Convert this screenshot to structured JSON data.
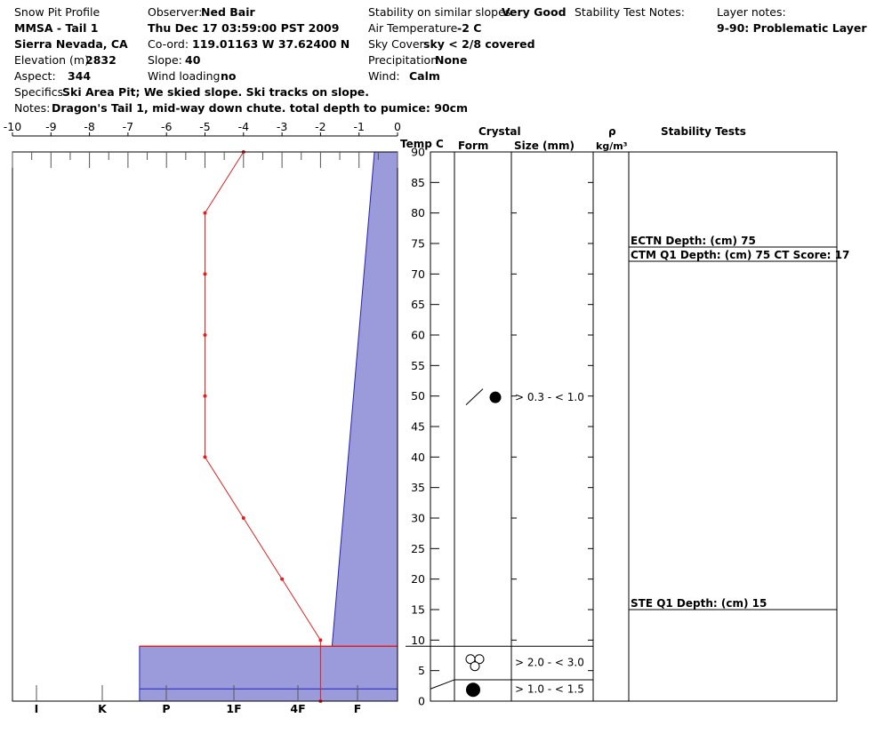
{
  "header": {
    "title": "Snow Pit Profile",
    "site": "MMSA - Tail 1",
    "region": "Sierra Nevada, CA",
    "elevation_label": "Elevation (m)",
    "elevation": "2832",
    "aspect_label": "Aspect:",
    "aspect": "344",
    "observer_label": "Observer:",
    "observer": "Ned Bair",
    "datetime": "Thu Dec 17 03:59:00 PST 2009",
    "coord_label": "Co-ord:",
    "coord": "119.01163 W 37.62400 N",
    "slope_label": "Slope:",
    "slope": "40",
    "wind_loading_label": "Wind loading",
    "wind_loading": "no",
    "stability_label": "Stability on similar slopes",
    "stability": "Very Good",
    "air_temp_label": "Air Temperature",
    "air_temp": "-2 C",
    "sky_label": "Sky Cover",
    "sky": "sky < 2/8 covered",
    "precip_label": "Precipitation",
    "precip": "None",
    "wind_label": "Wind:",
    "wind": "Calm",
    "stability_notes_label": "Stability Test Notes:",
    "layer_notes_label": "Layer notes:",
    "layer_note": "9-90: Problematic Layer",
    "specifics_label": "Specifics",
    "specifics": "Ski Area Pit; We skied slope. Ski tracks on slope.",
    "notes_label": "Notes:",
    "notes": "Dragon's Tail 1, mid-way down chute. total depth to pumice: 90cm"
  },
  "columns": {
    "temp": "Temp C",
    "crystal": "Crystal",
    "form": "Form",
    "size": "Size (mm)",
    "rho": "ρ",
    "density_unit": "kg/m³",
    "stability_tests": "Stability Tests"
  },
  "chart_data": {
    "type": "line",
    "x_axis": {
      "label": "Temp C",
      "range": [
        -10,
        0
      ],
      "ticks": [
        "-10",
        "-9",
        "-8",
        "-7",
        "-6",
        "-5",
        "-4",
        "-3",
        "-2",
        "-1",
        "0"
      ]
    },
    "y_axis": {
      "range": [
        0,
        90
      ],
      "ticks": [
        "0",
        "5",
        "10",
        "15",
        "20",
        "25",
        "30",
        "35",
        "40",
        "45",
        "50",
        "55",
        "60",
        "65",
        "70",
        "75",
        "80",
        "85",
        "90"
      ]
    },
    "hardness_axis": {
      "ticks": [
        "I",
        "K",
        "P",
        "1F",
        "4F",
        "F"
      ]
    },
    "temperature_profile": {
      "color": "#e02020",
      "depth": [
        90,
        80,
        70,
        60,
        50,
        40,
        30,
        20,
        10,
        0
      ],
      "temp": [
        -4,
        -5,
        -5,
        -5,
        -5,
        -5,
        -4,
        -3,
        -2,
        -2
      ]
    },
    "hardness_profile": {
      "fill": "#9b9bdb",
      "stroke": "#2222bb",
      "layers": [
        {
          "from": 0,
          "to": 9,
          "temp_equiv": -6.7
        },
        {
          "from": 9,
          "to": 90,
          "top_temp": -0.6,
          "bottom_temp": -1.7
        }
      ]
    },
    "boundaries": [
      2,
      9
    ]
  },
  "layers": [
    {
      "top": 90,
      "bottom": 9,
      "size": "> 0.3 - < 1.0",
      "form": "faceted-rounded"
    },
    {
      "top": 9,
      "bottom": 2,
      "size": "> 2.0 - < 3.0",
      "form": "rounded-cluster"
    },
    {
      "top": 2,
      "bottom": 0,
      "size": "> 1.0 - < 1.5",
      "form": "rounded"
    }
  ],
  "stability_tests": [
    {
      "text": "ECTN   Depth: (cm) 75",
      "depth": 75
    },
    {
      "text": "CTM Q1 Depth: (cm) 75 CT Score: 17",
      "depth": 75
    },
    {
      "text": "STE Q1 Depth: (cm) 15",
      "depth": 15
    }
  ]
}
